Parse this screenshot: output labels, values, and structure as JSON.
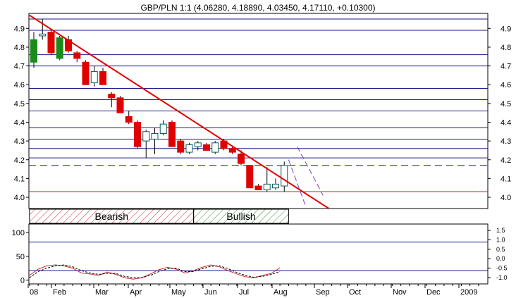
{
  "chart_data": [
    {
      "type": "candlestick",
      "title": "GBP/PLN 1:1 (4.06280, 4.18890, 4.03450, 4.17110, +0.10300)",
      "y_range": [
        3.94,
        4.98
      ],
      "y_ticks": [
        "4.9",
        "4.8",
        "4.7",
        "4.6",
        "4.5",
        "4.4",
        "4.3",
        "4.2",
        "4.1",
        "4.0"
      ],
      "x_labels": [
        "08",
        "Feb",
        "Mar",
        "Apr",
        "May",
        "Jun",
        "Jul",
        "Aug",
        "Sep",
        "Oct",
        "Nov",
        "Dec",
        "2009"
      ],
      "horizontal_levels": [
        4.95,
        4.89,
        4.76,
        4.7,
        4.58,
        4.52,
        4.46,
        4.37,
        4.31,
        4.26,
        4.21
      ],
      "dashed_level": 4.17,
      "support_level": 4.03,
      "trendline": {
        "start_week": -0.5,
        "start_value": 4.97,
        "end_week": 34.5,
        "end_value": 3.93
      },
      "projection_lines": [
        {
          "start_week": 30.5,
          "start_value": 4.27,
          "end_week": 33.5,
          "end_value": 4.01
        },
        {
          "start_week": 29.5,
          "start_value": 4.2,
          "end_week": 31.5,
          "end_value": 3.95
        }
      ],
      "zones": [
        {
          "label": "Bearish",
          "start_week": -0.5,
          "end_week": 18.5,
          "color": "#c03030"
        },
        {
          "label": "Bullish",
          "start_week": 18.5,
          "end_week": 29.5,
          "color": "#2e8b2e"
        }
      ],
      "candles": [
        {
          "o": 4.72,
          "h": 4.88,
          "l": 4.69,
          "c": 4.84
        },
        {
          "o": 4.86,
          "h": 4.95,
          "l": 4.84,
          "c": 4.87
        },
        {
          "o": 4.88,
          "h": 4.89,
          "l": 4.76,
          "c": 4.77
        },
        {
          "o": 4.74,
          "h": 4.86,
          "l": 4.73,
          "c": 4.85
        },
        {
          "o": 4.84,
          "h": 4.86,
          "l": 4.77,
          "c": 4.78
        },
        {
          "o": 4.77,
          "h": 4.78,
          "l": 4.72,
          "c": 4.74
        },
        {
          "o": 4.72,
          "h": 4.73,
          "l": 4.6,
          "c": 4.6
        },
        {
          "o": 4.61,
          "h": 4.7,
          "l": 4.59,
          "c": 4.67
        },
        {
          "o": 4.67,
          "h": 4.69,
          "l": 4.6,
          "c": 4.6
        },
        {
          "o": 4.55,
          "h": 4.56,
          "l": 4.48,
          "c": 4.53
        },
        {
          "o": 4.53,
          "h": 4.54,
          "l": 4.45,
          "c": 4.45
        },
        {
          "o": 4.43,
          "h": 4.46,
          "l": 4.39,
          "c": 4.4
        },
        {
          "o": 4.4,
          "h": 4.41,
          "l": 4.26,
          "c": 4.27
        },
        {
          "o": 4.3,
          "h": 4.36,
          "l": 4.21,
          "c": 4.35
        },
        {
          "o": 4.31,
          "h": 4.37,
          "l": 4.23,
          "c": 4.34
        },
        {
          "o": 4.34,
          "h": 4.41,
          "l": 4.33,
          "c": 4.39
        },
        {
          "o": 4.4,
          "h": 4.41,
          "l": 4.27,
          "c": 4.27
        },
        {
          "o": 4.3,
          "h": 4.31,
          "l": 4.23,
          "c": 4.24
        },
        {
          "o": 4.24,
          "h": 4.29,
          "l": 4.23,
          "c": 4.28
        },
        {
          "o": 4.27,
          "h": 4.3,
          "l": 4.25,
          "c": 4.29
        },
        {
          "o": 4.28,
          "h": 4.29,
          "l": 4.25,
          "c": 4.25
        },
        {
          "o": 4.24,
          "h": 4.3,
          "l": 4.23,
          "c": 4.29
        },
        {
          "o": 4.3,
          "h": 4.31,
          "l": 4.25,
          "c": 4.26
        },
        {
          "o": 4.26,
          "h": 4.27,
          "l": 4.23,
          "c": 4.24
        },
        {
          "o": 4.23,
          "h": 4.25,
          "l": 4.17,
          "c": 4.18
        },
        {
          "o": 4.17,
          "h": 4.17,
          "l": 4.05,
          "c": 4.05
        },
        {
          "o": 4.06,
          "h": 4.07,
          "l": 4.04,
          "c": 4.04
        },
        {
          "o": 4.04,
          "h": 4.16,
          "l": 4.03,
          "c": 4.07
        },
        {
          "o": 4.05,
          "h": 4.1,
          "l": 4.04,
          "c": 4.07
        },
        {
          "o": 4.06,
          "h": 4.19,
          "l": 4.03,
          "c": 4.17
        }
      ]
    },
    {
      "type": "line",
      "y_range": [
        -8,
        118
      ],
      "y_ticks_left": [
        "100",
        "50",
        "0"
      ],
      "y_ticks_right": [
        "1.5",
        "1.0",
        "0.5",
        "0.0",
        "-0.5",
        "-1.0"
      ],
      "reference_levels": [
        80,
        20
      ],
      "series": [
        {
          "color": "#c03030",
          "dashed": false,
          "values": [
            10,
            23,
            30,
            32,
            30,
            25,
            15,
            13,
            10,
            17,
            12,
            5,
            2,
            5,
            13,
            22,
            27,
            23,
            15,
            20,
            27,
            32,
            28,
            20,
            13,
            7,
            5,
            10,
            14,
            26
          ]
        },
        {
          "color": "#000000",
          "dashed": true,
          "values": [
            5,
            18,
            25,
            30,
            32,
            28,
            20,
            15,
            12,
            14,
            14,
            8,
            5,
            5,
            10,
            18,
            24,
            25,
            18,
            18,
            24,
            29,
            30,
            24,
            16,
            10,
            6,
            8,
            12,
            18
          ]
        }
      ]
    }
  ]
}
